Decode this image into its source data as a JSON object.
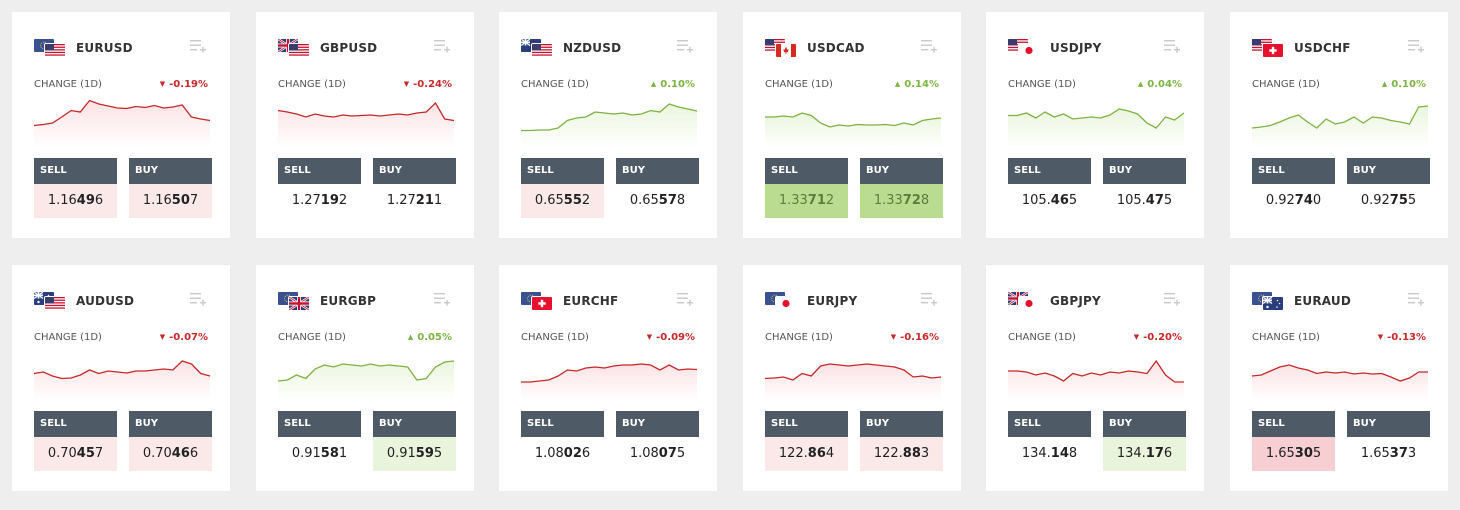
{
  "colors": {
    "up": "#7cb342",
    "down": "#c62828",
    "up_fill": "#eaf5dd",
    "down_fill": "#fbe2e5",
    "button_bg": "#4e5a65"
  },
  "common": {
    "change_label": "CHANGE (1D)",
    "sell_label": "SELL",
    "buy_label": "BUY",
    "menu_icon": "list-add-icon",
    "arrow_up": "▲",
    "arrow_down": "▼"
  },
  "cards": [
    {
      "pair": "EURUSD",
      "flags": [
        "eu",
        "us"
      ],
      "change": "-0.19%",
      "dir": "down",
      "sell": {
        "main": "1.16",
        "big": "49",
        "tail": "6",
        "highlight": "red"
      },
      "buy": {
        "main": "1.16",
        "big": "50",
        "tail": "7",
        "highlight": "red"
      },
      "spark": [
        0.45,
        0.47,
        0.5,
        0.62,
        0.75,
        0.72,
        0.95,
        0.88,
        0.84,
        0.8,
        0.79,
        0.83,
        0.81,
        0.85,
        0.8,
        0.82,
        0.86,
        0.62,
        0.58,
        0.55
      ]
    },
    {
      "pair": "GBPUSD",
      "flags": [
        "gb",
        "us"
      ],
      "change": "-0.24%",
      "dir": "down",
      "sell": {
        "main": "1.27",
        "big": "19",
        "tail": "2",
        "highlight": "none"
      },
      "buy": {
        "main": "1.27",
        "big": "21",
        "tail": "1",
        "highlight": "none"
      },
      "spark": [
        0.75,
        0.72,
        0.68,
        0.62,
        0.68,
        0.64,
        0.62,
        0.66,
        0.64,
        0.65,
        0.66,
        0.64,
        0.66,
        0.68,
        0.66,
        0.7,
        0.72,
        0.9,
        0.58,
        0.55
      ]
    },
    {
      "pair": "NZDUSD",
      "flags": [
        "nz",
        "us"
      ],
      "change": "0.10%",
      "dir": "up",
      "sell": {
        "main": "0.65",
        "big": "55",
        "tail": "2",
        "highlight": "red"
      },
      "buy": {
        "main": "0.65",
        "big": "57",
        "tail": "8",
        "highlight": "none"
      },
      "spark": [
        0.35,
        0.35,
        0.36,
        0.36,
        0.4,
        0.55,
        0.6,
        0.62,
        0.72,
        0.7,
        0.68,
        0.7,
        0.66,
        0.68,
        0.75,
        0.72,
        0.88,
        0.82,
        0.78,
        0.74
      ]
    },
    {
      "pair": "USDCAD",
      "flags": [
        "us",
        "ca"
      ],
      "change": "0.14%",
      "dir": "up",
      "sell": {
        "main": "1.33",
        "big": "71",
        "tail": "2",
        "highlight": "green-strong"
      },
      "buy": {
        "main": "1.33",
        "big": "72",
        "tail": "8",
        "highlight": "green-strong"
      },
      "spark": [
        0.62,
        0.62,
        0.64,
        0.62,
        0.7,
        0.65,
        0.5,
        0.42,
        0.46,
        0.44,
        0.47,
        0.46,
        0.46,
        0.47,
        0.45,
        0.5,
        0.46,
        0.55,
        0.58,
        0.6
      ]
    },
    {
      "pair": "USDJPY",
      "flags": [
        "us",
        "jp"
      ],
      "change": "0.04%",
      "dir": "up",
      "sell": {
        "main": "105.",
        "big": "46",
        "tail": "5",
        "highlight": "none"
      },
      "buy": {
        "main": "105.",
        "big": "47",
        "tail": "5",
        "highlight": "none"
      },
      "spark": [
        0.65,
        0.65,
        0.7,
        0.6,
        0.72,
        0.62,
        0.68,
        0.58,
        0.6,
        0.62,
        0.6,
        0.66,
        0.78,
        0.74,
        0.68,
        0.5,
        0.4,
        0.62,
        0.56,
        0.7
      ]
    },
    {
      "pair": "USDCHF",
      "flags": [
        "us",
        "ch"
      ],
      "change": "0.10%",
      "dir": "up",
      "sell": {
        "main": "0.92",
        "big": "74",
        "tail": "0",
        "highlight": "none"
      },
      "buy": {
        "main": "0.92",
        "big": "75",
        "tail": "5",
        "highlight": "none"
      },
      "spark": [
        0.4,
        0.42,
        0.45,
        0.52,
        0.6,
        0.66,
        0.52,
        0.4,
        0.58,
        0.48,
        0.52,
        0.62,
        0.5,
        0.62,
        0.6,
        0.55,
        0.52,
        0.48,
        0.82,
        0.84
      ]
    },
    {
      "pair": "AUDUSD",
      "flags": [
        "au",
        "us"
      ],
      "change": "-0.07%",
      "dir": "down",
      "sell": {
        "main": "0.70",
        "big": "45",
        "tail": "7",
        "highlight": "red"
      },
      "buy": {
        "main": "0.70",
        "big": "46",
        "tail": "6",
        "highlight": "red"
      },
      "spark": [
        0.55,
        0.58,
        0.5,
        0.45,
        0.46,
        0.52,
        0.62,
        0.55,
        0.6,
        0.58,
        0.56,
        0.6,
        0.6,
        0.62,
        0.64,
        0.62,
        0.8,
        0.74,
        0.55,
        0.5
      ]
    },
    {
      "pair": "EURGBP",
      "flags": [
        "eu",
        "gb"
      ],
      "change": "0.05%",
      "dir": "up",
      "sell": {
        "main": "0.91",
        "big": "58",
        "tail": "1",
        "highlight": "none"
      },
      "buy": {
        "main": "0.91",
        "big": "59",
        "tail": "5",
        "highlight": "green"
      },
      "spark": [
        0.4,
        0.42,
        0.52,
        0.45,
        0.64,
        0.72,
        0.68,
        0.74,
        0.72,
        0.7,
        0.74,
        0.7,
        0.72,
        0.7,
        0.68,
        0.42,
        0.45,
        0.68,
        0.78,
        0.8
      ]
    },
    {
      "pair": "EURCHF",
      "flags": [
        "eu",
        "ch"
      ],
      "change": "-0.09%",
      "dir": "down",
      "sell": {
        "main": "1.08",
        "big": "02",
        "tail": "6",
        "highlight": "none"
      },
      "buy": {
        "main": "1.08",
        "big": "07",
        "tail": "5",
        "highlight": "none"
      },
      "spark": [
        0.38,
        0.38,
        0.4,
        0.42,
        0.5,
        0.62,
        0.6,
        0.66,
        0.68,
        0.66,
        0.7,
        0.72,
        0.72,
        0.74,
        0.72,
        0.62,
        0.72,
        0.62,
        0.64,
        0.63
      ]
    },
    {
      "pair": "EURJPY",
      "flags": [
        "eu",
        "jp"
      ],
      "change": "-0.16%",
      "dir": "down",
      "sell": {
        "main": "122.",
        "big": "86",
        "tail": "4",
        "highlight": "red"
      },
      "buy": {
        "main": "122.",
        "big": "88",
        "tail": "3",
        "highlight": "red"
      },
      "spark": [
        0.45,
        0.46,
        0.48,
        0.42,
        0.55,
        0.5,
        0.7,
        0.74,
        0.72,
        0.7,
        0.72,
        0.74,
        0.72,
        0.7,
        0.68,
        0.62,
        0.48,
        0.5,
        0.46,
        0.48
      ]
    },
    {
      "pair": "GBPJPY",
      "flags": [
        "gb",
        "jp"
      ],
      "change": "-0.20%",
      "dir": "down",
      "sell": {
        "main": "134.",
        "big": "14",
        "tail": "8",
        "highlight": "none"
      },
      "buy": {
        "main": "134.",
        "big": "17",
        "tail": "6",
        "highlight": "green"
      },
      "spark": [
        0.6,
        0.6,
        0.58,
        0.52,
        0.56,
        0.5,
        0.4,
        0.55,
        0.5,
        0.56,
        0.52,
        0.58,
        0.56,
        0.6,
        0.58,
        0.55,
        0.8,
        0.52,
        0.38,
        0.38
      ]
    },
    {
      "pair": "EURAUD",
      "flags": [
        "eu",
        "au"
      ],
      "change": "-0.13%",
      "dir": "down",
      "sell": {
        "main": "1.65",
        "big": "30",
        "tail": "5",
        "highlight": "red-strong"
      },
      "buy": {
        "main": "1.65",
        "big": "37",
        "tail": "3",
        "highlight": "none"
      },
      "spark": [
        0.5,
        0.52,
        0.6,
        0.68,
        0.72,
        0.66,
        0.62,
        0.55,
        0.58,
        0.56,
        0.58,
        0.54,
        0.56,
        0.54,
        0.55,
        0.48,
        0.4,
        0.46,
        0.58,
        0.58
      ]
    }
  ]
}
